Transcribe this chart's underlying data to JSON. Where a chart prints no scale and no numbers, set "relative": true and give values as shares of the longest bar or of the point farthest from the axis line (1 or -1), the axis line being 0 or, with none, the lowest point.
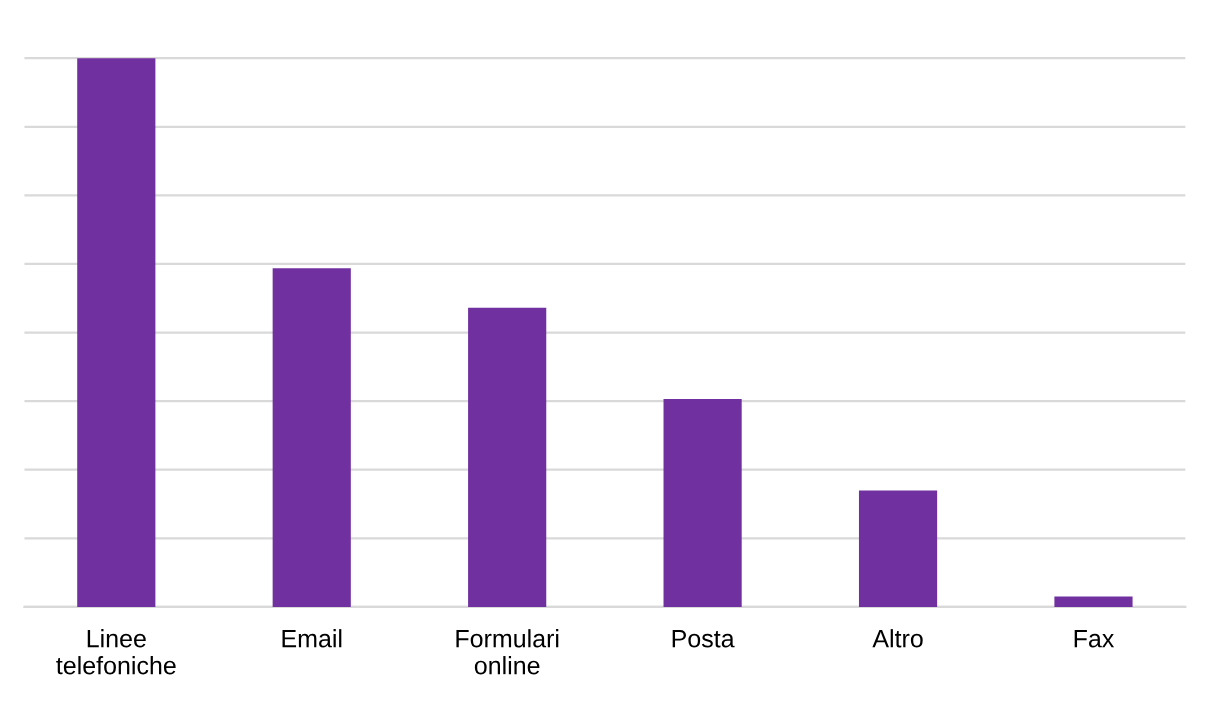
{
  "chart_data": {
    "type": "bar",
    "relative": true,
    "grid": "y",
    "categories": [
      "Linee\ntelefoniche",
      "Email",
      "Formulari\nonline",
      "Posta",
      "Altro",
      "Fax"
    ],
    "values": [
      1,
      0.617,
      0.545,
      0.379,
      0.212,
      0.019
    ],
    "color": "#7030a0"
  }
}
